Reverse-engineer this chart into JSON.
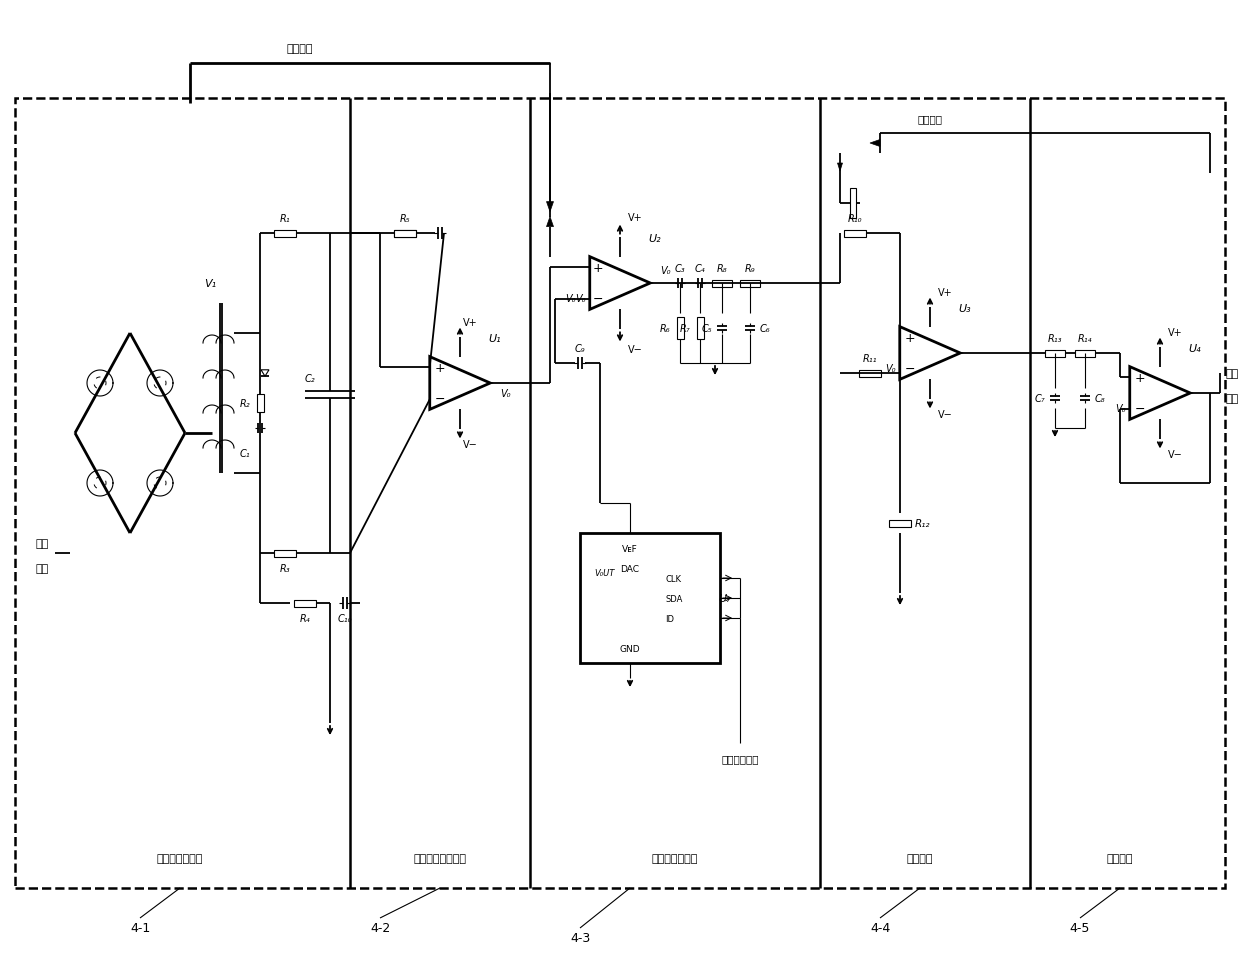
{
  "bg_color": "#ffffff",
  "line_color": "#000000",
  "fig_width": 12.4,
  "fig_height": 9.54,
  "dpi": 100,
  "labels": {
    "modulation_signal": "调制信号",
    "demodulation_signal": "解调信号",
    "gain_control_signal": "增益控制信号",
    "input_line1": "输入",
    "input_line2": "信号",
    "output_line1": "输出",
    "output_line2": "信号",
    "block1": "调制与隔离电路",
    "block2": "低噪声交流放大器",
    "block3": "程控增益放大器",
    "block4": "解调电路",
    "block5": "跟随电路",
    "ref1": "4-1",
    "ref2": "4-2",
    "ref3": "4-3",
    "ref4": "4-4",
    "ref5": "4-5"
  }
}
